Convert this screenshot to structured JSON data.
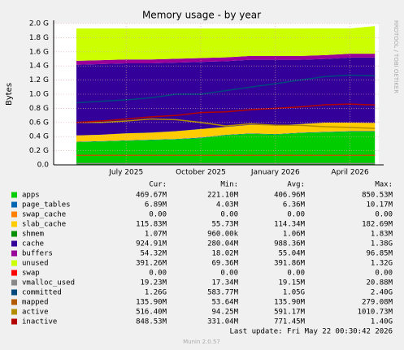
{
  "chart_data": {
    "type": "munin-stacked-area",
    "title": "Memory usage - by year",
    "y_label": "Bytes",
    "side_text": "RRDTOOL / TOBI OETIKER",
    "footer": "Last update: Fri May 22 00:30:42 2026",
    "version": "Munin 2.0.57",
    "grid": true,
    "x": [
      "2025-05",
      "2025-06",
      "2025-07",
      "2025-08",
      "2025-09",
      "2025-10",
      "2025-11",
      "2025-12",
      "2026-01",
      "2026-02",
      "2026-03",
      "2026-04",
      "2026-05"
    ],
    "xticks": [
      {
        "value": "2025-07",
        "label": "July 2025"
      },
      {
        "value": "2025-10",
        "label": "October 2025"
      },
      {
        "value": "2026-01",
        "label": "January 2026"
      },
      {
        "value": "2026-04",
        "label": "April 2026"
      }
    ],
    "ylim": [
      0,
      2000000000
    ],
    "yticks": [
      {
        "value": 0,
        "label": "0.0"
      },
      {
        "value": 200000000,
        "label": "0.2 G"
      },
      {
        "value": 400000000,
        "label": "0.4 G"
      },
      {
        "value": 600000000,
        "label": "0.6 G"
      },
      {
        "value": 800000000,
        "label": "0.8 G"
      },
      {
        "value": 1000000000,
        "label": "1.0 G"
      },
      {
        "value": 1200000000,
        "label": "1.2 G"
      },
      {
        "value": 1400000000,
        "label": "1.4 G"
      },
      {
        "value": 1600000000,
        "label": "1.6 G"
      },
      {
        "value": 1800000000,
        "label": "1.8 G"
      },
      {
        "value": 2000000000,
        "label": "2.0 G"
      }
    ],
    "legend_columns": [
      "Cur:",
      "Min:",
      "Avg:",
      "Max:"
    ],
    "series": [
      {
        "name": "apps",
        "kind": "area",
        "color": "#00cc00",
        "stats": [
          "469.67M",
          "221.10M",
          "406.96M",
          "850.53M"
        ],
        "values": [
          320000000,
          330000000,
          340000000,
          350000000,
          360000000,
          380000000,
          420000000,
          440000000,
          430000000,
          450000000,
          460000000,
          470000000,
          470000000
        ]
      },
      {
        "name": "page_tables",
        "kind": "area",
        "color": "#0066b3",
        "stats": [
          "6.89M",
          "4.03M",
          "6.36M",
          "10.17M"
        ],
        "values": [
          6000000,
          6000000,
          6000000,
          6000000,
          6000000,
          6000000,
          6000000,
          6000000,
          6000000,
          6000000,
          7000000,
          7000000,
          7000000
        ]
      },
      {
        "name": "swap_cache",
        "kind": "area",
        "color": "#ff8000",
        "stats": [
          "0.00",
          "0.00",
          "0.00",
          "0.00"
        ],
        "values": [
          0,
          0,
          0,
          0,
          0,
          0,
          0,
          0,
          0,
          0,
          0,
          0,
          0
        ]
      },
      {
        "name": "slab_cache",
        "kind": "area",
        "color": "#ffcc00",
        "stats": [
          "115.83M",
          "55.73M",
          "114.34M",
          "182.69M"
        ],
        "values": [
          90000000,
          90000000,
          100000000,
          100000000,
          110000000,
          120000000,
          110000000,
          120000000,
          120000000,
          120000000,
          130000000,
          120000000,
          116000000
        ]
      },
      {
        "name": "shmem",
        "kind": "area",
        "color": "#008f00",
        "stats": [
          "1.07M",
          "960.00k",
          "1.06M",
          "1.83M"
        ],
        "values": [
          1000000,
          1000000,
          1000000,
          1000000,
          1000000,
          1000000,
          1000000,
          1000000,
          1000000,
          1000000,
          1000000,
          1000000,
          1000000
        ]
      },
      {
        "name": "cache",
        "kind": "area",
        "color": "#330099",
        "stats": [
          "924.91M",
          "280.04M",
          "988.36M",
          "1.38G"
        ],
        "values": [
          1000000000,
          1000000000,
          990000000,
          980000000,
          970000000,
          950000000,
          930000000,
          920000000,
          930000000,
          910000000,
          900000000,
          920000000,
          925000000
        ]
      },
      {
        "name": "buffers",
        "kind": "area",
        "color": "#990099",
        "stats": [
          "54.32M",
          "18.02M",
          "55.04M",
          "96.85M"
        ],
        "values": [
          55000000,
          55000000,
          55000000,
          55000000,
          55000000,
          55000000,
          55000000,
          55000000,
          55000000,
          55000000,
          55000000,
          55000000,
          54000000
        ]
      },
      {
        "name": "unused",
        "kind": "area",
        "color": "#ccff00",
        "stats": [
          "391.26M",
          "69.36M",
          "391.86M",
          "1.32G"
        ],
        "values": [
          458000000,
          448000000,
          438000000,
          438000000,
          428000000,
          418000000,
          408000000,
          388000000,
          388000000,
          388000000,
          378000000,
          358000000,
          391000000
        ]
      },
      {
        "name": "swap",
        "kind": "area",
        "color": "#ff0000",
        "stats": [
          "0.00",
          "0.00",
          "0.00",
          "0.00"
        ],
        "values": [
          0,
          0,
          0,
          0,
          0,
          0,
          0,
          0,
          0,
          0,
          0,
          0,
          0
        ]
      },
      {
        "name": "vmalloc_used",
        "kind": "line",
        "color": "#888888",
        "stats": [
          "19.23M",
          "17.34M",
          "19.15M",
          "20.88M"
        ],
        "values": [
          19000000,
          19000000,
          19000000,
          19000000,
          19000000,
          19000000,
          19000000,
          19000000,
          19000000,
          19000000,
          19000000,
          19000000,
          19000000
        ]
      },
      {
        "name": "committed",
        "kind": "line",
        "color": "#00487d",
        "stats": [
          "1.26G",
          "583.77M",
          "1.05G",
          "2.40G"
        ],
        "values": [
          880000000,
          900000000,
          920000000,
          950000000,
          1000000000,
          1000000000,
          1050000000,
          1100000000,
          1150000000,
          1200000000,
          1250000000,
          1270000000,
          1260000000
        ]
      },
      {
        "name": "mapped",
        "kind": "line",
        "color": "#b35a00",
        "stats": [
          "135.90M",
          "53.64M",
          "135.90M",
          "279.08M"
        ],
        "values": [
          135000000,
          135000000,
          135000000,
          135000000,
          135000000,
          135000000,
          135000000,
          135000000,
          135000000,
          135000000,
          135000000,
          135000000,
          135000000
        ]
      },
      {
        "name": "active",
        "kind": "line",
        "color": "#b38f00",
        "stats": [
          "516.40M",
          "94.25M",
          "591.17M",
          "1010.73M"
        ],
        "values": [
          600000000,
          600000000,
          620000000,
          650000000,
          640000000,
          600000000,
          550000000,
          580000000,
          560000000,
          560000000,
          540000000,
          530000000,
          516000000
        ]
      },
      {
        "name": "inactive",
        "kind": "line",
        "color": "#b30000",
        "stats": [
          "848.53M",
          "331.04M",
          "771.45M",
          "1.40G"
        ],
        "values": [
          600000000,
          620000000,
          650000000,
          680000000,
          700000000,
          740000000,
          750000000,
          780000000,
          800000000,
          820000000,
          850000000,
          860000000,
          848000000
        ]
      }
    ]
  }
}
